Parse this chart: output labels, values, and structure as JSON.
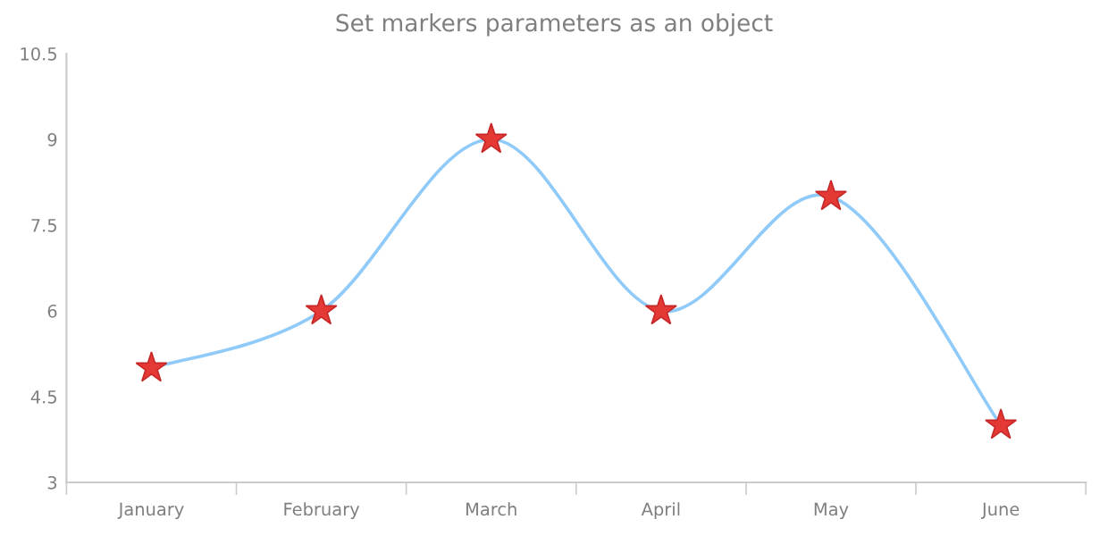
{
  "chart_data": {
    "type": "line",
    "title": "Set markers parameters as an object",
    "categories": [
      "January",
      "February",
      "March",
      "April",
      "May",
      "June"
    ],
    "series": [
      {
        "color": "#90caf9",
        "colors": [
          "#e53935",
          "#e53935",
          "#e53935",
          "#e53935",
          "#e53935",
          "#e53935"
        ],
        "values": [
          5,
          6,
          9,
          6,
          8,
          4
        ]
      }
    ],
    "ylim": [
      3,
      10.5
    ],
    "yticks": [
      3,
      4.5,
      6,
      7.5,
      9,
      10.5
    ],
    "grid": false,
    "marker": "star",
    "line_style": "solid"
  }
}
